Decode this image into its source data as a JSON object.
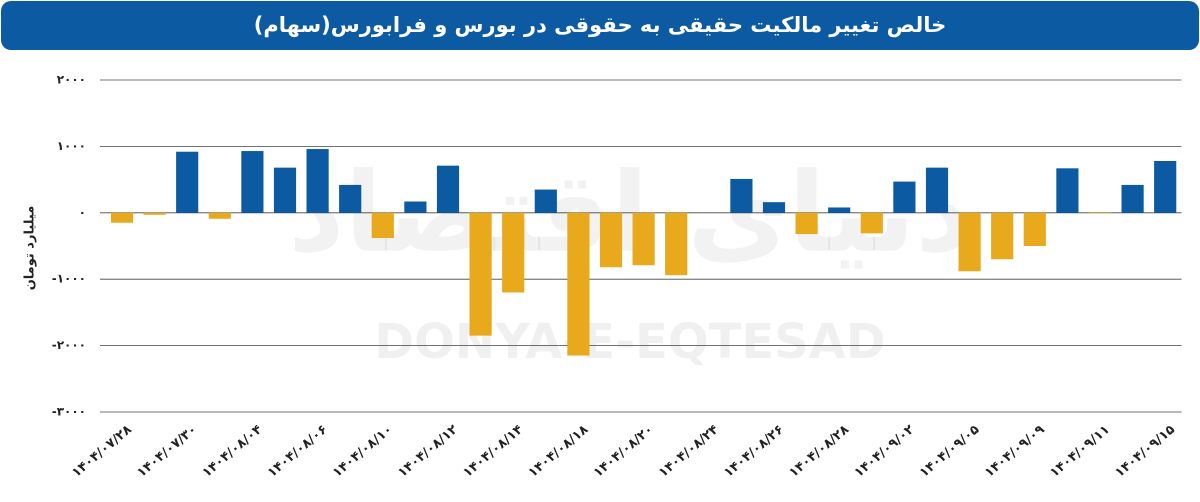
{
  "chart_data": {
    "type": "bar",
    "title": "خالص تغییر مالکیت حقیقی به حقوقی در بورس و فرابورس(سهام)",
    "y_axis_label": "میلیارد تومان",
    "watermark": "DONYA-E-EQTESAD",
    "watermark_fa": "دنیای اقتصاد",
    "categories": [
      "۱۴۰۴/۰۷/۲۸",
      null,
      "۱۴۰۴/۰۷/۳۰",
      null,
      "۱۴۰۴/۰۸/۰۴",
      null,
      "۱۴۰۴/۰۸/۰۶",
      null,
      "۱۴۰۴/۰۸/۱۰",
      null,
      "۱۴۰۴/۰۸/۱۲",
      null,
      "۱۴۰۴/۰۸/۱۴",
      null,
      "۱۴۰۴/۰۸/۱۸",
      null,
      "۱۴۰۴/۰۸/۲۰",
      null,
      "۱۴۰۴/۰۸/۲۴",
      null,
      "۱۴۰۴/۰۸/۲۶",
      null,
      "۱۴۰۴/۰۸/۲۸",
      null,
      "۱۴۰۴/۰۹/۰۲",
      null,
      "۱۴۰۴/۰۹/۰۵",
      null,
      "۱۴۰۴/۰۹/۰۹",
      null,
      "۱۴۰۴/۰۹/۱۱",
      null,
      "۱۴۰۴/۰۹/۱۵"
    ],
    "values": [
      -150,
      -30,
      920,
      -90,
      930,
      680,
      960,
      420,
      -380,
      170,
      710,
      -1850,
      -1200,
      350,
      -2150,
      -820,
      -790,
      -940,
      null,
      510,
      160,
      -320,
      80,
      -310,
      470,
      680,
      -880,
      -700,
      -500,
      670,
      -10,
      420,
      780
    ],
    "positive_color": "#0b5aa2",
    "negative_color": "#e8a91c",
    "ylim": [
      -3000,
      2000
    ],
    "yticks": [
      {
        "value": 2000,
        "label": "۲۰۰۰"
      },
      {
        "value": 1000,
        "label": "۱۰۰۰"
      },
      {
        "value": 0,
        "label": "۰"
      },
      {
        "value": -1000,
        "label": "-۱۰۰۰"
      },
      {
        "value": -2000,
        "label": "-۲۰۰۰"
      },
      {
        "value": -3000,
        "label": "-۳۰۰۰"
      }
    ],
    "grid": true
  }
}
